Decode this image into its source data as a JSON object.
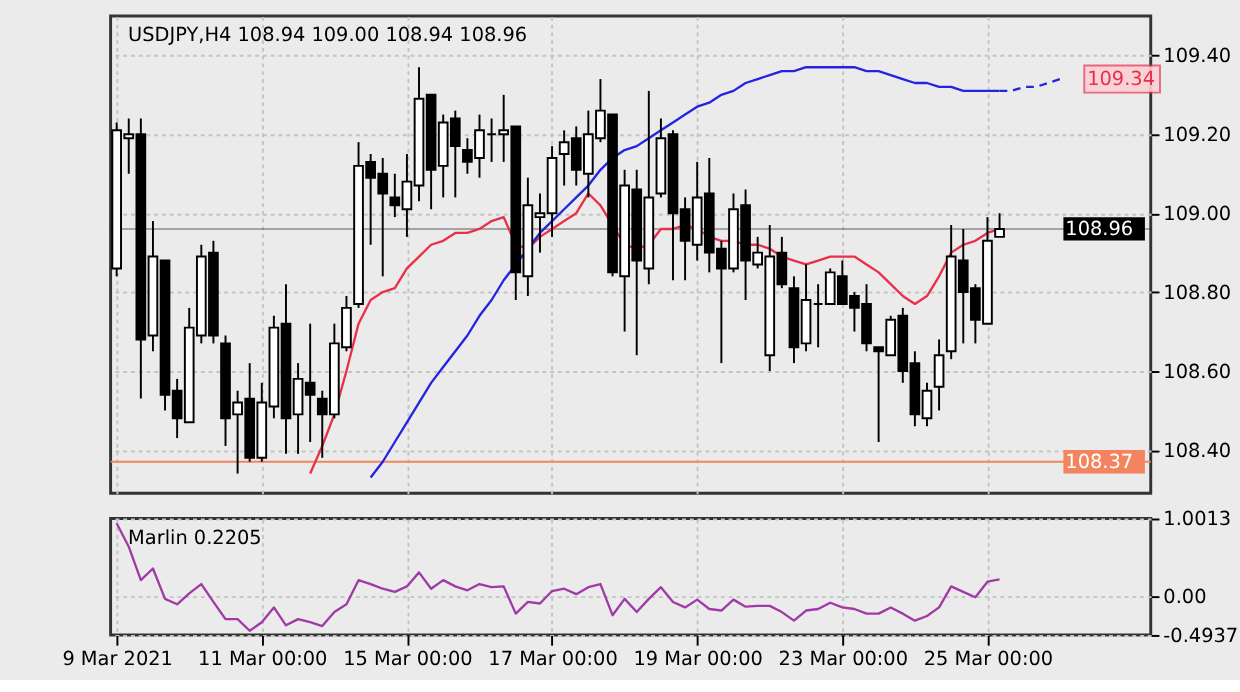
{
  "chart_data": [
    {
      "type": "candlestick",
      "title": "USDJPY,H4  108.94 109.00 108.94 108.96",
      "categories": [
        null,
        null,
        null,
        null,
        null,
        null,
        null,
        null,
        null,
        null,
        null,
        null,
        null,
        null,
        null,
        null,
        null,
        null,
        null,
        null,
        null,
        null,
        null,
        null,
        null,
        null,
        null,
        null,
        null,
        null,
        null,
        null,
        null,
        null,
        null,
        null,
        null,
        null,
        null,
        null,
        null,
        null,
        null,
        null,
        null,
        null,
        null,
        null,
        null,
        null,
        null,
        null,
        null,
        null,
        null,
        null,
        null,
        null,
        null,
        null,
        null,
        null,
        null,
        null,
        null,
        null,
        null,
        null,
        null,
        null,
        null,
        null,
        null,
        null,
        null,
        null,
        null,
        null,
        null,
        null,
        null,
        null,
        null,
        null,
        null,
        null
      ],
      "ohlc": [
        [
          108.86,
          109.23,
          108.84,
          109.21
        ],
        [
          109.19,
          109.24,
          109.1,
          109.2
        ],
        [
          109.2,
          109.24,
          108.53,
          108.68
        ],
        [
          108.69,
          108.98,
          108.65,
          108.89
        ],
        [
          108.88,
          108.88,
          108.5,
          108.54
        ],
        [
          108.55,
          108.58,
          108.43,
          108.48
        ],
        [
          108.47,
          108.76,
          108.47,
          108.71
        ],
        [
          108.69,
          108.92,
          108.67,
          108.89
        ],
        [
          108.9,
          108.93,
          108.67,
          108.69
        ],
        [
          108.67,
          108.69,
          108.41,
          108.48
        ],
        [
          108.49,
          108.55,
          108.34,
          108.52
        ],
        [
          108.53,
          108.62,
          108.37,
          108.38
        ],
        [
          108.38,
          108.57,
          108.37,
          108.52
        ],
        [
          108.51,
          108.74,
          108.48,
          108.71
        ],
        [
          108.72,
          108.82,
          108.39,
          108.48
        ],
        [
          108.49,
          108.62,
          108.39,
          108.58
        ],
        [
          108.57,
          108.72,
          108.42,
          108.54
        ],
        [
          108.53,
          108.55,
          108.38,
          108.49
        ],
        [
          108.49,
          108.72,
          108.48,
          108.67
        ],
        [
          108.66,
          108.79,
          108.65,
          108.76
        ],
        [
          108.77,
          109.18,
          108.76,
          109.12
        ],
        [
          109.13,
          109.15,
          108.92,
          109.09
        ],
        [
          109.1,
          109.14,
          108.84,
          109.05
        ],
        [
          109.04,
          109.1,
          108.99,
          109.02
        ],
        [
          109.01,
          109.15,
          108.94,
          109.08
        ],
        [
          109.07,
          109.37,
          109.03,
          109.29
        ],
        [
          109.3,
          109.3,
          109.01,
          109.11
        ],
        [
          109.12,
          109.25,
          109.04,
          109.23
        ],
        [
          109.24,
          109.26,
          109.04,
          109.17
        ],
        [
          109.16,
          109.19,
          109.1,
          109.13
        ],
        [
          109.14,
          109.25,
          109.09,
          109.21
        ],
        [
          109.2,
          109.24,
          109.13,
          109.2
        ],
        [
          109.2,
          109.3,
          109.13,
          109.21
        ],
        [
          109.22,
          109.22,
          108.78,
          108.85
        ],
        [
          108.84,
          109.09,
          108.79,
          109.02
        ],
        [
          108.99,
          109.05,
          108.9,
          109.0
        ],
        [
          109.0,
          109.17,
          108.94,
          109.14
        ],
        [
          109.15,
          109.21,
          109.07,
          109.18
        ],
        [
          109.19,
          109.22,
          109.07,
          109.11
        ],
        [
          109.1,
          109.26,
          109.04,
          109.2
        ],
        [
          109.19,
          109.34,
          109.18,
          109.26
        ],
        [
          109.25,
          109.25,
          108.84,
          108.85
        ],
        [
          108.84,
          109.11,
          108.7,
          109.07
        ],
        [
          109.06,
          109.11,
          108.64,
          108.88
        ],
        [
          108.86,
          109.31,
          108.82,
          109.04
        ],
        [
          109.05,
          109.24,
          109.04,
          109.19
        ],
        [
          109.2,
          109.21,
          108.83,
          109.0
        ],
        [
          109.01,
          109.04,
          108.83,
          108.93
        ],
        [
          108.92,
          109.13,
          108.88,
          109.04
        ],
        [
          109.05,
          109.14,
          108.85,
          108.9
        ],
        [
          108.91,
          108.93,
          108.62,
          108.86
        ],
        [
          108.86,
          109.05,
          108.85,
          109.01
        ],
        [
          109.02,
          109.06,
          108.78,
          108.88
        ],
        [
          108.87,
          108.94,
          108.86,
          108.9
        ],
        [
          108.64,
          108.97,
          108.6,
          108.89
        ],
        [
          108.9,
          108.94,
          108.81,
          108.82
        ],
        [
          108.81,
          108.84,
          108.62,
          108.66
        ],
        [
          108.67,
          108.87,
          108.65,
          108.78
        ],
        [
          108.77,
          108.82,
          108.66,
          108.77
        ],
        [
          108.77,
          108.86,
          108.77,
          108.85
        ],
        [
          108.84,
          108.88,
          108.77,
          108.77
        ],
        [
          108.79,
          108.8,
          108.7,
          108.76
        ],
        [
          108.77,
          108.82,
          108.65,
          108.67
        ],
        [
          108.66,
          108.66,
          108.42,
          108.65
        ],
        [
          108.64,
          108.74,
          108.64,
          108.73
        ],
        [
          108.74,
          108.76,
          108.57,
          108.6
        ],
        [
          108.62,
          108.65,
          108.46,
          108.49
        ],
        [
          108.48,
          108.57,
          108.46,
          108.55
        ],
        [
          108.56,
          108.68,
          108.5,
          108.64
        ],
        [
          108.65,
          108.97,
          108.63,
          108.89
        ],
        [
          108.88,
          108.96,
          108.67,
          108.8
        ],
        [
          108.81,
          108.82,
          108.67,
          108.73
        ],
        [
          108.72,
          108.99,
          108.72,
          108.93
        ],
        [
          108.94,
          109.0,
          108.94,
          108.96
        ],
        null,
        null,
        null,
        null,
        null,
        null,
        null,
        null,
        null,
        null,
        null,
        null
      ],
      "series": [
        {
          "type": "line",
          "color": "#e8304a",
          "values": [
            null,
            null,
            null,
            null,
            null,
            null,
            null,
            null,
            null,
            null,
            null,
            null,
            null,
            null,
            null,
            null,
            108.34,
            108.41,
            108.49,
            108.6,
            108.72,
            108.78,
            108.8,
            108.81,
            108.86,
            108.89,
            108.92,
            108.93,
            108.95,
            108.95,
            108.96,
            108.98,
            108.99,
            108.92,
            108.91,
            108.94,
            108.96,
            108.98,
            109.0,
            109.05,
            109.02,
            108.97,
            108.92,
            108.91,
            108.92,
            108.96,
            108.96,
            108.97,
            108.96,
            108.94,
            108.93,
            108.93,
            108.92,
            108.92,
            108.91,
            108.89,
            108.88,
            108.87,
            108.88,
            108.89,
            108.89,
            108.89,
            108.87,
            108.85,
            108.82,
            108.79,
            108.77,
            108.79,
            108.84,
            108.9,
            108.92,
            108.93,
            108.95,
            108.96,
            null,
            null,
            null,
            null,
            null,
            null,
            null,
            null,
            null,
            null,
            null,
            null
          ]
        },
        {
          "type": "line",
          "color": "#2424e0",
          "values": [
            null,
            null,
            null,
            null,
            null,
            null,
            null,
            null,
            null,
            null,
            null,
            null,
            null,
            null,
            null,
            null,
            null,
            null,
            null,
            null,
            null,
            108.33,
            108.37,
            108.42,
            108.47,
            108.52,
            108.57,
            108.61,
            108.65,
            108.69,
            108.74,
            108.78,
            108.83,
            108.87,
            108.91,
            108.95,
            108.98,
            109.01,
            109.04,
            109.07,
            109.11,
            109.14,
            109.16,
            109.17,
            109.19,
            109.21,
            109.23,
            109.25,
            109.27,
            109.28,
            109.3,
            109.31,
            109.33,
            109.34,
            109.35,
            109.36,
            109.36,
            109.37,
            109.37,
            109.37,
            109.37,
            109.37,
            109.36,
            109.36,
            109.35,
            109.34,
            109.33,
            109.33,
            109.32,
            109.32,
            109.31,
            109.31,
            109.31,
            109.31,
            null,
            null,
            null,
            null,
            null,
            null,
            null,
            null,
            null,
            null,
            null,
            null
          ]
        },
        {
          "type": "line",
          "color": "#2424e0",
          "line_style": "dashed",
          "values": [
            null,
            null,
            null,
            null,
            null,
            null,
            null,
            null,
            null,
            null,
            null,
            null,
            null,
            null,
            null,
            null,
            null,
            null,
            null,
            null,
            null,
            null,
            null,
            null,
            null,
            null,
            null,
            null,
            null,
            null,
            null,
            null,
            null,
            null,
            null,
            null,
            null,
            null,
            null,
            null,
            null,
            null,
            null,
            null,
            null,
            null,
            null,
            null,
            null,
            null,
            null,
            null,
            null,
            null,
            null,
            null,
            null,
            null,
            null,
            null,
            null,
            null,
            null,
            null,
            null,
            null,
            null,
            null,
            null,
            null,
            null,
            null,
            null,
            109.31,
            109.31,
            109.32,
            109.32,
            109.33,
            109.34,
            null,
            null,
            null,
            null,
            null,
            null,
            null
          ]
        }
      ],
      "ylim": [
        108.29,
        109.5
      ],
      "yticks": [
        {
          "value": 108.4,
          "label": "108.40"
        },
        {
          "value": 108.6,
          "label": "108.60"
        },
        {
          "value": 108.8,
          "label": "108.80"
        },
        {
          "value": 109.0,
          "label": "109.00"
        },
        {
          "value": 109.2,
          "label": "109.20"
        },
        {
          "value": 109.4,
          "label": "109.40"
        }
      ],
      "grid": true,
      "tick_labels": "y",
      "ref_lines": [
        {
          "axis": "y",
          "value": 108.37,
          "label": "108.37",
          "color": "#f4845f"
        },
        {
          "axis": "y",
          "value": 108.96,
          "label": "108.96",
          "color": "#000000"
        }
      ],
      "annotations": [
        {
          "text": "109.34",
          "y": 109.34
        }
      ]
    },
    {
      "type": "line",
      "title": "Marlin 0.2205",
      "categories": [
        "9 Mar 2021",
        null,
        null,
        null,
        null,
        null,
        null,
        null,
        null,
        null,
        null,
        null,
        "11 Mar 00:00",
        null,
        null,
        null,
        null,
        null,
        null,
        null,
        null,
        null,
        null,
        null,
        "15 Mar 00:00",
        null,
        null,
        null,
        null,
        null,
        null,
        null,
        null,
        null,
        null,
        null,
        "17 Mar 00:00",
        null,
        null,
        null,
        null,
        null,
        null,
        null,
        null,
        null,
        null,
        null,
        "19 Mar 00:00",
        null,
        null,
        null,
        null,
        null,
        null,
        null,
        null,
        null,
        null,
        null,
        "23 Mar 00:00",
        null,
        null,
        null,
        null,
        null,
        null,
        null,
        null,
        null,
        null,
        null,
        "25 Mar 00:00",
        null,
        null,
        null,
        null,
        null,
        null,
        null,
        null,
        null,
        null,
        null,
        null,
        null
      ],
      "series": [
        {
          "color": "#a03aa6",
          "values": [
            0.94,
            0.64,
            0.21,
            0.36,
            -0.03,
            -0.1,
            0.04,
            0.16,
            -0.07,
            -0.29,
            -0.29,
            -0.44,
            -0.33,
            -0.14,
            -0.37,
            -0.29,
            -0.33,
            -0.38,
            -0.2,
            -0.1,
            0.21,
            0.16,
            0.1,
            0.06,
            0.13,
            0.31,
            0.1,
            0.21,
            0.13,
            0.08,
            0.16,
            0.12,
            0.13,
            -0.22,
            -0.07,
            -0.09,
            0.07,
            0.1,
            0.03,
            0.12,
            0.16,
            -0.24,
            -0.03,
            -0.2,
            -0.03,
            0.12,
            -0.07,
            -0.14,
            -0.04,
            -0.16,
            -0.18,
            -0.04,
            -0.13,
            -0.12,
            -0.12,
            -0.2,
            -0.31,
            -0.18,
            -0.16,
            -0.08,
            -0.14,
            -0.16,
            -0.22,
            -0.22,
            -0.14,
            -0.22,
            -0.31,
            -0.25,
            -0.14,
            0.13,
            0.06,
            -0.01,
            0.19,
            0.22,
            null,
            null,
            null,
            null,
            null,
            null,
            null,
            null,
            null,
            null,
            null,
            null
          ]
        }
      ],
      "ylim": [
        -0.4937,
        1.0013
      ],
      "yticks": [
        {
          "value": -0.4937,
          "label": "-0.4937"
        },
        {
          "value": 0,
          "label": "0.00"
        },
        {
          "value": 1.0013,
          "label": "1.0013"
        }
      ],
      "grid": true
    }
  ]
}
